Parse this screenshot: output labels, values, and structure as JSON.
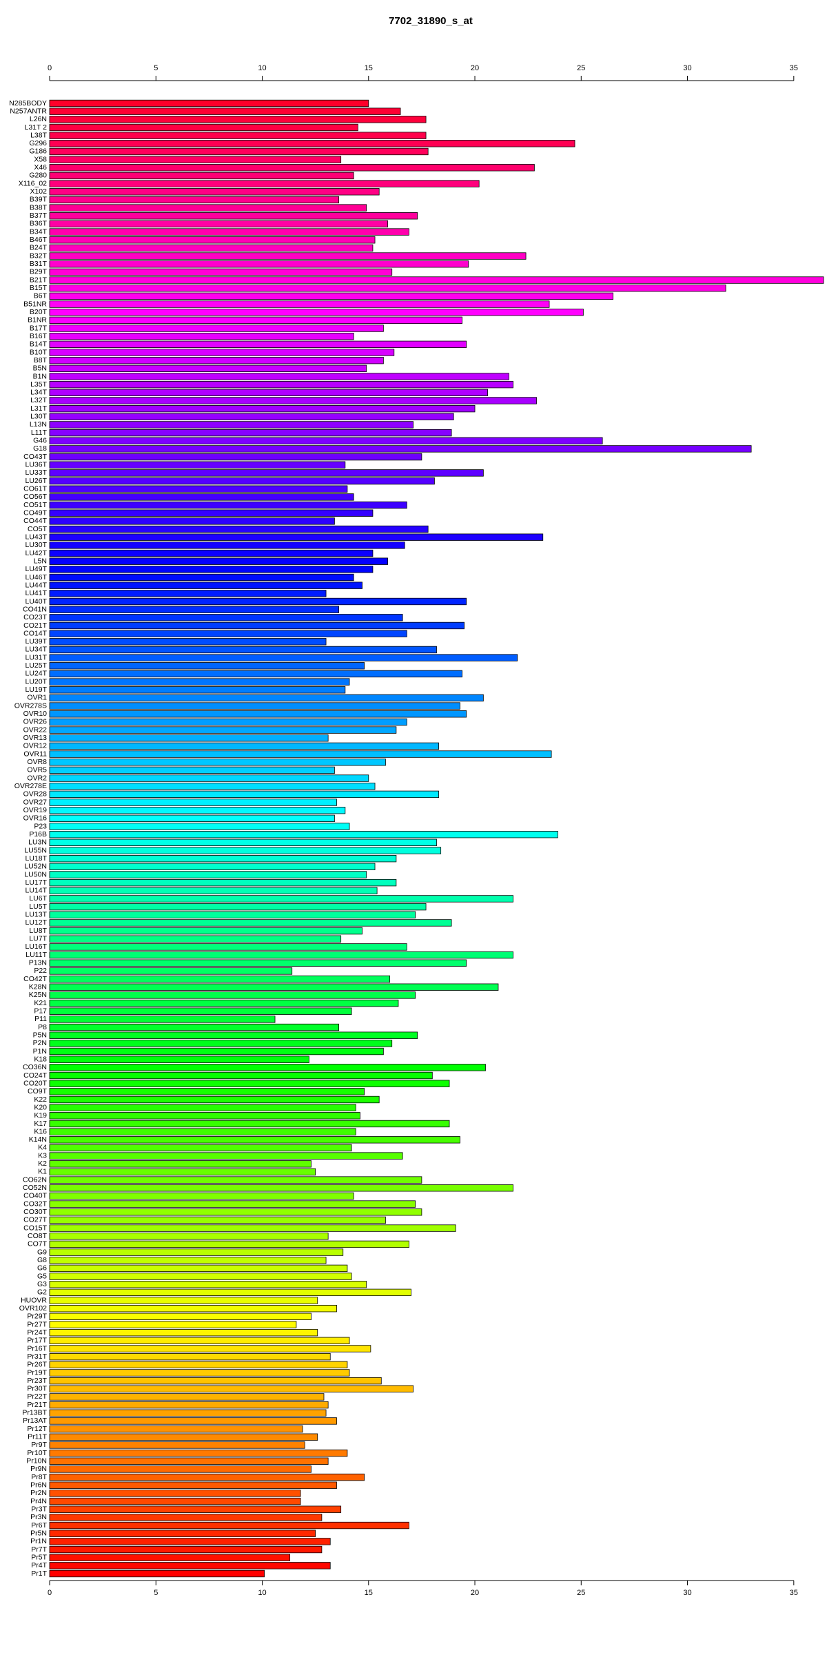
{
  "chart_data": {
    "type": "barh",
    "title": "7702_31890_s_at",
    "categories": [
      "N285BODY",
      "N257ANTR",
      "L26N",
      "L31T 2",
      "L38T",
      "G296",
      "G186",
      "X58",
      "X46",
      "G280",
      "X116_02",
      "X102",
      "B39T",
      "B38T",
      "B37T",
      "B36T",
      "B34T",
      "B46T",
      "B24T",
      "B32T",
      "B31T",
      "B29T",
      "B21T",
      "B15T",
      "B6T",
      "B51NR",
      "B20T",
      "B1NR",
      "B17T",
      "B16T",
      "B14T",
      "B10T",
      "B8T",
      "B5N",
      "B1N",
      "L35T",
      "L34T",
      "L32T",
      "L31T",
      "L30T",
      "L13N",
      "L11T",
      "G46",
      "G18",
      "CO43T",
      "LU36T",
      "LU33T",
      "LU26T",
      "CO61T",
      "CO56T",
      "CO51T",
      "CO49T",
      "CO44T",
      "CO5T",
      "LU43T",
      "LU30T",
      "LU42T",
      "L5N",
      "LU49T",
      "LU46T",
      "LU44T",
      "LU41T",
      "LU40T",
      "CO41N",
      "CO23T",
      "CO21T",
      "CO14T",
      "LU39T",
      "LU34T",
      "LU31T",
      "LU25T",
      "LU24T",
      "LU20T",
      "LU19T",
      "OVR1",
      "OVR278S",
      "OVR10",
      "OVR26",
      "OVR22",
      "OVR13",
      "OVR12",
      "OVR11",
      "OVR8",
      "OVR5",
      "OVR2",
      "OVR278E",
      "OVR28",
      "OVR27",
      "OVR19",
      "OVR16",
      "P23",
      "P16B",
      "LU3N",
      "LU55N",
      "LU18T",
      "LU52N",
      "LU50N",
      "LU17T",
      "LU14T",
      "LU6T",
      "LU5T",
      "LU13T",
      "LU12T",
      "LU8T",
      "LU7T",
      "LU16T",
      "LU11T",
      "P13N",
      "P22",
      "CO42T",
      "K28N",
      "K25N",
      "K21",
      "P17",
      "P11",
      "P8",
      "P5N",
      "P2N",
      "P1N",
      "K18",
      "CO36N",
      "CO24T",
      "CO20T",
      "CO9T",
      "K22",
      "K20",
      "K19",
      "K17",
      "K16",
      "K14N",
      "K4",
      "K3",
      "K2",
      "K1",
      "CO62N",
      "CO52N",
      "CO40T",
      "CO32T",
      "CO30T",
      "CO27T",
      "CO15T",
      "CO8T",
      "CO7T",
      "G9",
      "G8",
      "G6",
      "G5",
      "G3",
      "G2",
      "HUOVR",
      "OVR102",
      "Pr29T",
      "Pr27T",
      "Pr24T",
      "Pr17T",
      "Pr16T",
      "Pr31T",
      "Pr26T",
      "Pr19T",
      "Pr23T",
      "Pr30T",
      "Pr22T",
      "Pr21T",
      "Pr13BT",
      "Pr13AT",
      "Pr12T",
      "Pr11T",
      "Pr9T",
      "Pr10T",
      "Pr10N",
      "Pr9N",
      "Pr8T",
      "Pr6N",
      "Pr2N",
      "Pr4N",
      "Pr3T",
      "Pr3N",
      "Pr6T",
      "Pr5N",
      "Pr1N",
      "Pr7T",
      "Pr5T",
      "Pr4T",
      "Pr1T"
    ],
    "values": [
      15.0,
      16.5,
      17.7,
      14.5,
      17.7,
      24.7,
      17.8,
      13.7,
      22.8,
      14.3,
      20.2,
      15.5,
      13.6,
      14.9,
      17.3,
      15.9,
      16.9,
      15.3,
      15.2,
      22.4,
      19.7,
      16.1,
      36.4,
      31.8,
      26.5,
      23.5,
      25.1,
      19.4,
      15.7,
      14.3,
      19.6,
      16.2,
      15.7,
      14.9,
      21.6,
      21.8,
      20.6,
      22.9,
      20.0,
      19.0,
      17.1,
      18.9,
      26.0,
      33.0,
      17.5,
      13.9,
      20.4,
      18.1,
      14.0,
      14.3,
      16.8,
      15.2,
      13.4,
      17.8,
      23.2,
      16.7,
      15.2,
      15.9,
      15.2,
      14.3,
      14.7,
      13.0,
      19.6,
      13.6,
      16.6,
      19.5,
      16.8,
      13.0,
      18.2,
      22.0,
      14.8,
      19.4,
      14.1,
      13.9,
      20.4,
      19.3,
      19.6,
      16.8,
      16.3,
      13.1,
      18.3,
      23.6,
      15.8,
      13.4,
      15.0,
      15.3,
      18.3,
      13.5,
      13.9,
      13.4,
      14.1,
      23.9,
      18.2,
      18.4,
      16.3,
      15.3,
      14.9,
      16.3,
      15.4,
      21.8,
      17.7,
      17.2,
      18.9,
      14.7,
      13.7,
      16.8,
      21.8,
      19.6,
      11.4,
      16.0,
      21.1,
      17.2,
      16.4,
      14.2,
      10.6,
      13.6,
      17.3,
      16.1,
      15.7,
      12.2,
      20.5,
      18.0,
      18.8,
      14.8,
      15.5,
      14.4,
      14.6,
      18.8,
      14.4,
      19.3,
      14.2,
      16.6,
      12.3,
      12.5,
      17.5,
      21.8,
      14.3,
      17.2,
      17.5,
      15.8,
      19.1,
      13.1,
      16.9,
      13.8,
      13.0,
      14.0,
      14.2,
      14.9,
      17.0,
      12.6,
      13.5,
      12.3,
      11.6,
      12.6,
      14.1,
      15.1,
      13.2,
      14.0,
      14.1,
      15.6,
      17.1,
      12.9,
      13.1,
      13.0,
      13.5,
      11.9,
      12.6,
      12.0,
      14.0,
      13.1,
      12.3,
      14.8,
      13.5,
      11.8,
      11.8,
      13.7,
      12.8,
      16.9,
      12.5,
      13.2,
      12.8,
      11.3,
      13.2,
      10.1
    ],
    "palette": "rainbow",
    "xlim": [
      0,
      36.4
    ],
    "xticks": [
      0,
      5,
      10,
      15,
      20,
      25,
      30,
      35
    ]
  }
}
